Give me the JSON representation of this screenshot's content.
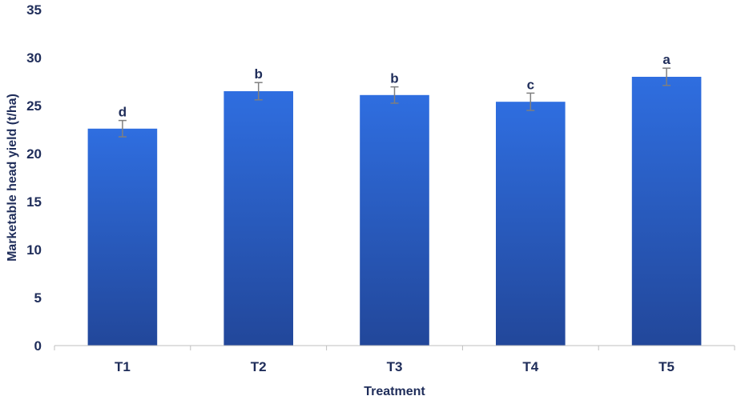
{
  "chart_data": {
    "type": "bar",
    "categories": [
      "T1",
      "T2",
      "T3",
      "T4",
      "T5"
    ],
    "values": [
      22.6,
      26.5,
      26.1,
      25.4,
      28.0
    ],
    "errors": [
      0.85,
      0.9,
      0.85,
      0.9,
      0.9
    ],
    "significance_labels": [
      "d",
      "b",
      "b",
      "c",
      "a"
    ],
    "xlabel": "Treatment",
    "ylabel": "Marketable head yield (t/ha)",
    "ylim": [
      0,
      35
    ],
    "yticks": [
      "0",
      "5",
      "10",
      "15",
      "20",
      "25",
      "30",
      "35"
    ],
    "grid": false,
    "legend": "none",
    "bar_color_top": "#2f6ee0",
    "bar_color_bottom": "#22479a"
  }
}
